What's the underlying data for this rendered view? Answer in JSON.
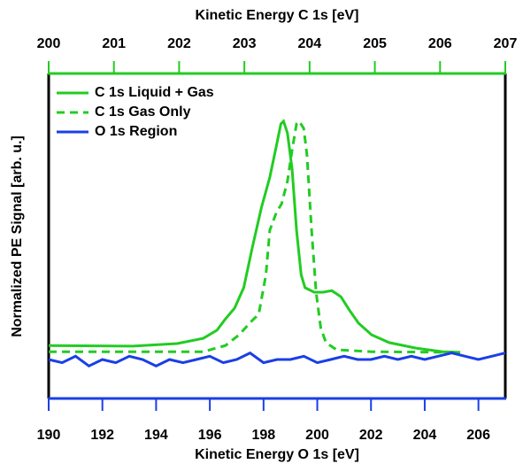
{
  "chart_data": {
    "type": "line",
    "x_label": "Kinetic Energy O 1s [eV]",
    "x2_label": "Kinetic Energy C 1s [eV]",
    "y_label": "Normalized PE Signal [arb. u.]",
    "xlim": [
      190,
      207
    ],
    "xticks": [
      190,
      192,
      194,
      196,
      198,
      200,
      202,
      204,
      206
    ],
    "x_color": "#1a3fe6",
    "x2lim": [
      200,
      207
    ],
    "x2ticks": [
      200,
      201,
      202,
      203,
      204,
      205,
      206,
      207
    ],
    "x2_color": "#22cc22",
    "ylim": [
      0,
      1
    ],
    "legend": "upper left",
    "series": [
      {
        "name": "C 1s Liquid + Gas",
        "color": "#22cc22",
        "line_style": "solid",
        "axis": "x2",
        "x": [
          200.0,
          201.29,
          201.97,
          202.37,
          202.58,
          202.71,
          202.85,
          202.99,
          203.12,
          203.26,
          203.39,
          203.49,
          203.56,
          203.6,
          203.66,
          203.73,
          203.8,
          203.87,
          203.93,
          204.07,
          204.21,
          204.34,
          204.48,
          204.61,
          204.75,
          204.95,
          205.22,
          205.63,
          206.04,
          206.31
        ],
        "values": [
          0.163,
          0.161,
          0.169,
          0.185,
          0.21,
          0.245,
          0.278,
          0.341,
          0.463,
          0.586,
          0.681,
          0.777,
          0.845,
          0.853,
          0.817,
          0.708,
          0.518,
          0.381,
          0.341,
          0.327,
          0.327,
          0.332,
          0.313,
          0.272,
          0.232,
          0.196,
          0.172,
          0.155,
          0.144,
          0.142
        ]
      },
      {
        "name": "C 1s Gas Only",
        "color": "#22cc22",
        "line_style": "dashed",
        "axis": "x2",
        "x": [
          200.0,
          202.37,
          202.71,
          202.92,
          203.12,
          203.22,
          203.33,
          203.39,
          203.49,
          203.57,
          203.66,
          203.73,
          203.8,
          203.84,
          203.91,
          203.96,
          204.03,
          204.1,
          204.17,
          204.25,
          204.41,
          204.95,
          206.31
        ],
        "values": [
          0.144,
          0.144,
          0.163,
          0.196,
          0.24,
          0.259,
          0.381,
          0.518,
          0.572,
          0.599,
          0.668,
          0.763,
          0.845,
          0.853,
          0.831,
          0.749,
          0.518,
          0.327,
          0.218,
          0.172,
          0.15,
          0.144,
          0.142
        ]
      },
      {
        "name": "O 1s Region",
        "color": "#1a3fe6",
        "line_style": "solid",
        "axis": "x",
        "x": [
          190,
          190.5,
          191,
          191.5,
          192,
          192.5,
          193,
          193.5,
          194,
          194.5,
          195,
          195.5,
          196,
          196.5,
          197,
          197.5,
          198,
          198.5,
          199,
          199.5,
          200,
          200.5,
          201,
          201.5,
          202,
          202.5,
          203,
          203.5,
          204,
          204.5,
          205,
          205.5,
          206,
          206.5,
          207
        ],
        "values": [
          0.12,
          0.11,
          0.13,
          0.1,
          0.12,
          0.11,
          0.13,
          0.12,
          0.1,
          0.12,
          0.11,
          0.12,
          0.13,
          0.11,
          0.12,
          0.14,
          0.11,
          0.12,
          0.12,
          0.13,
          0.11,
          0.12,
          0.13,
          0.12,
          0.12,
          0.13,
          0.12,
          0.13,
          0.12,
          0.13,
          0.14,
          0.13,
          0.12,
          0.13,
          0.14
        ]
      }
    ]
  }
}
